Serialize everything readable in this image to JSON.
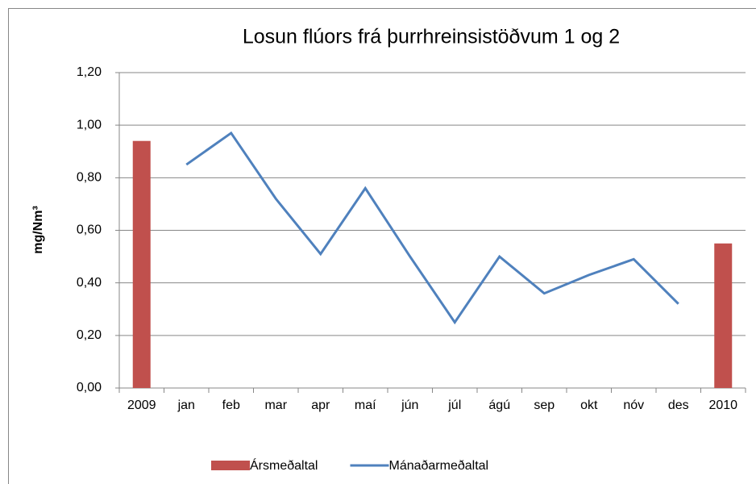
{
  "chart_data": {
    "type": "bar",
    "title": "Losun flúors frá þurrhreinsistöðvum 1 og 2",
    "ylabel": "mg/Nm³",
    "categories": [
      "2009",
      "jan",
      "feb",
      "mar",
      "apr",
      "maí",
      "jún",
      "júl",
      "ágú",
      "sep",
      "okt",
      "nóv",
      "des",
      "2010"
    ],
    "series": [
      {
        "name": "Ársmeðaltal",
        "type": "bar",
        "color": "#c0504d",
        "values": [
          0.94,
          null,
          null,
          null,
          null,
          null,
          null,
          null,
          null,
          null,
          null,
          null,
          null,
          0.55
        ]
      },
      {
        "name": "Mánaðarmeðaltal",
        "type": "line",
        "color": "#4f81bd",
        "values": [
          null,
          0.85,
          0.97,
          0.72,
          0.51,
          0.76,
          0.5,
          0.25,
          0.5,
          0.36,
          0.43,
          0.49,
          0.32,
          null
        ]
      }
    ],
    "ylim": [
      0,
      1.2
    ],
    "yticks": [
      {
        "value": 0,
        "label": "0,00"
      },
      {
        "value": 0.2,
        "label": "0,20"
      },
      {
        "value": 0.4,
        "label": "0,40"
      },
      {
        "value": 0.6,
        "label": "0,60"
      },
      {
        "value": 0.8,
        "label": "0,80"
      },
      {
        "value": 1.0,
        "label": "1,00"
      },
      {
        "value": 1.2,
        "label": "1,20"
      }
    ],
    "grid": true,
    "legend": "bottom"
  }
}
